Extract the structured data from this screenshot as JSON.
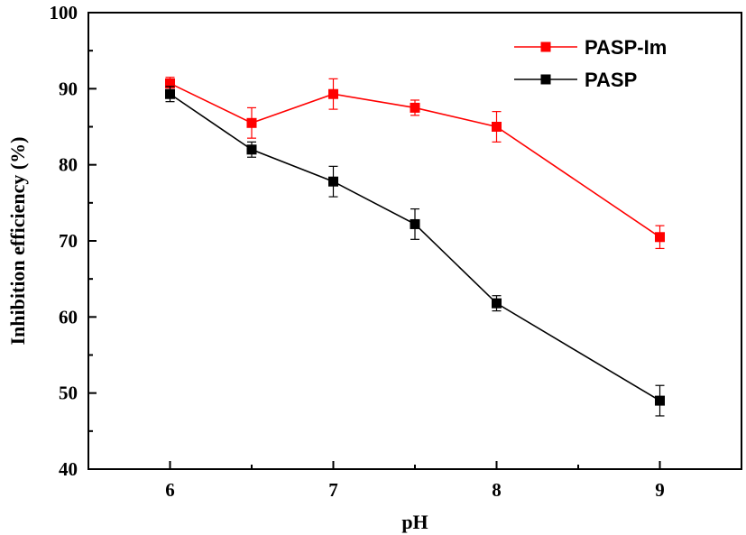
{
  "chart_data": {
    "type": "line",
    "title": "",
    "xlabel": "pH",
    "ylabel": "Inhibition efficiency (%)",
    "xlim": [
      5.5,
      9.5
    ],
    "ylim": [
      40,
      100
    ],
    "x_ticks": [
      6,
      7,
      8,
      9
    ],
    "y_ticks": [
      40,
      50,
      60,
      70,
      80,
      90,
      100
    ],
    "x_tick_labels": [
      "6",
      "7",
      "8",
      "9"
    ],
    "y_tick_labels": [
      "40",
      "50",
      "60",
      "70",
      "80",
      "90",
      "100"
    ],
    "grid": false,
    "legend_position": "top-right",
    "series": [
      {
        "name": "PASP-Im",
        "color": "#ff0000",
        "marker": "square",
        "x": [
          6,
          6.5,
          7,
          7.5,
          8,
          9
        ],
        "y": [
          90.7,
          85.5,
          89.3,
          87.5,
          85.0,
          70.5
        ],
        "error": [
          0.8,
          2.0,
          2.0,
          1.0,
          2.0,
          1.5
        ]
      },
      {
        "name": "PASP",
        "color": "#000000",
        "marker": "square",
        "x": [
          6,
          6.5,
          7,
          7.5,
          8,
          9
        ],
        "y": [
          89.3,
          82.0,
          77.8,
          72.2,
          61.8,
          49.0
        ],
        "error": [
          1.0,
          1.0,
          2.0,
          2.0,
          1.0,
          2.0
        ]
      }
    ]
  }
}
